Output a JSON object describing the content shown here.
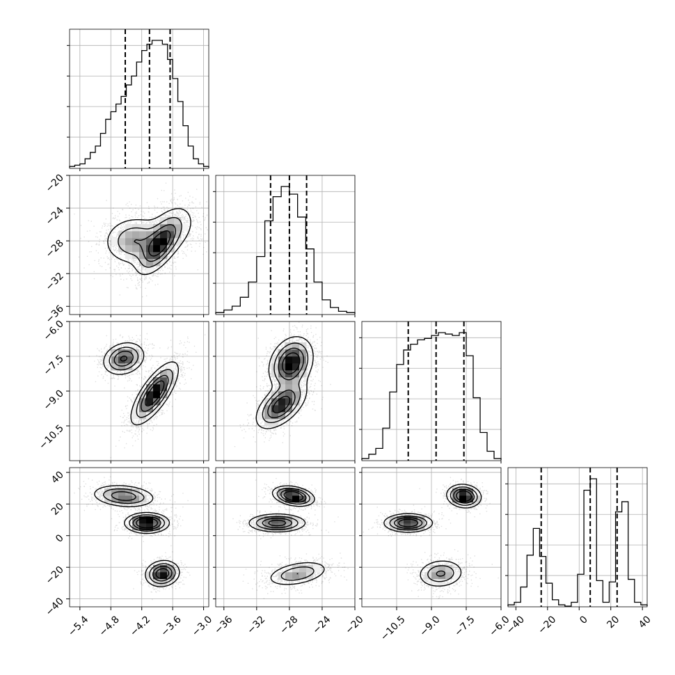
{
  "chart_data": {
    "type": "corner",
    "title": "",
    "parameters": [
      {
        "range": [
          -5.6,
          -2.9
        ],
        "ticks": [
          -5.4,
          -4.8,
          -4.2,
          -3.6,
          -3.0
        ],
        "tick_labels": [
          "−5.4",
          "−4.8",
          "−4.2",
          "−3.6",
          "−3.0"
        ],
        "quantiles": [
          -4.52,
          -4.05,
          -3.65
        ]
      },
      {
        "range": [
          -37,
          -20
        ],
        "ticks": [
          -36,
          -32,
          -28,
          -24,
          -20
        ],
        "tick_labels": [
          "−36",
          "−32",
          "−28",
          "−24",
          "−20"
        ],
        "quantiles": [
          -30.3,
          -28.0,
          -25.9
        ]
      },
      {
        "range": [
          -12,
          -6
        ],
        "ticks": [
          -10.5,
          -9.0,
          -7.5,
          -6.0
        ],
        "tick_labels": [
          "−10.5",
          "−9.0",
          "−7.5",
          "−6.0"
        ],
        "quantiles": [
          -10.0,
          -8.8,
          -7.6
        ]
      },
      {
        "range": [
          -45,
          43
        ],
        "ticks": [
          -40,
          -20,
          0,
          20,
          40
        ],
        "tick_labels": [
          "−40",
          "−20",
          "0",
          "20",
          "40"
        ],
        "quantiles": [
          -24,
          7,
          24
        ]
      }
    ],
    "histograms": [
      {
        "param": 0,
        "bin_edges": [
          -5.6,
          -5.5,
          -5.4,
          -5.3,
          -5.2,
          -5.1,
          -5.0,
          -4.9,
          -4.8,
          -4.7,
          -4.6,
          -4.5,
          -4.4,
          -4.3,
          -4.2,
          -4.1,
          -4.0,
          -3.9,
          -3.8,
          -3.7,
          -3.6,
          -3.5,
          -3.4,
          -3.3,
          -3.2,
          -3.1,
          -3.0,
          -2.9
        ],
        "counts": [
          1,
          2,
          3,
          7,
          12,
          17,
          27,
          38,
          44,
          50,
          56,
          65,
          72,
          83,
          92,
          97,
          100,
          100,
          97,
          85,
          70,
          52,
          33,
          17,
          7,
          3,
          1
        ]
      },
      {
        "param": 1,
        "bin_edges": [
          -37,
          -36,
          -35,
          -34,
          -33,
          -32,
          -31,
          -30,
          -29,
          -28,
          -27,
          -26,
          -25,
          -24,
          -23,
          -22,
          -21,
          -20
        ],
        "counts": [
          1,
          3,
          6,
          13,
          25,
          45,
          73,
          92,
          100,
          94,
          76,
          51,
          25,
          11,
          5,
          2,
          1
        ]
      },
      {
        "param": 2,
        "bin_edges": [
          -12,
          -11.7,
          -11.4,
          -11.1,
          -10.8,
          -10.5,
          -10.2,
          -9.9,
          -9.6,
          -9.3,
          -9.0,
          -8.7,
          -8.4,
          -8.1,
          -7.8,
          -7.5,
          -7.2,
          -6.9,
          -6.6,
          -6.3,
          -6.0
        ],
        "counts": [
          1,
          4,
          8,
          22,
          47,
          66,
          76,
          80,
          83,
          84,
          86,
          88,
          87,
          86,
          88,
          72,
          43,
          19,
          6,
          1
        ]
      },
      {
        "param": 3,
        "bin_edges": [
          -45,
          -41,
          -37,
          -33,
          -29,
          -25,
          -21,
          -17,
          -13,
          -9,
          -5,
          -1,
          3,
          7,
          11,
          15,
          19,
          23,
          27,
          31,
          35,
          39,
          43
        ],
        "counts": [
          1,
          3,
          15,
          40,
          61,
          39,
          18,
          5,
          1,
          0,
          3,
          25,
          91,
          100,
          20,
          3,
          19,
          74,
          82,
          21,
          3,
          1
        ]
      }
    ],
    "density_panels": [
      {
        "x": 0,
        "y": 1,
        "clusters": [
          {
            "center": [
              -4.35,
              -28.0
            ],
            "sd": [
              0.3,
              1.5
            ],
            "rho": 0.05,
            "weight": 1.0
          },
          {
            "center": [
              -3.85,
              -28.5
            ],
            "sd": [
              0.22,
              1.8
            ],
            "rho": 0.65,
            "weight": 1.1
          },
          {
            "center": [
              -3.6,
              -26.5
            ],
            "sd": [
              0.3,
              1.8
            ],
            "rho": 0.3,
            "weight": 0.45
          }
        ]
      },
      {
        "x": 0,
        "y": 2,
        "clusters": [
          {
            "center": [
              -4.55,
              -7.6
            ],
            "sd": [
              0.2,
              0.35
            ],
            "rho": 0.2,
            "weight": 0.35
          },
          {
            "center": [
              -3.95,
              -9.1
            ],
            "sd": [
              0.22,
              0.65
            ],
            "rho": 0.75,
            "weight": 0.65
          }
        ]
      },
      {
        "x": 1,
        "y": 2,
        "clusters": [
          {
            "center": [
              -27.8,
              -7.8
            ],
            "sd": [
              1.3,
              0.55
            ],
            "rho": 0.25,
            "weight": 0.55
          },
          {
            "center": [
              -29.0,
              -9.6
            ],
            "sd": [
              1.5,
              0.5
            ],
            "rho": 0.55,
            "weight": 0.45
          }
        ]
      },
      {
        "x": 0,
        "y": 3,
        "clusters": [
          {
            "center": [
              -4.55,
              25
            ],
            "sd": [
              0.3,
              3.5
            ],
            "rho": -0.2,
            "weight": 0.34
          },
          {
            "center": [
              -4.1,
              8
            ],
            "sd": [
              0.2,
              3
            ],
            "rho": 0.0,
            "weight": 0.36
          },
          {
            "center": [
              -3.8,
              -24
            ],
            "sd": [
              0.16,
              4
            ],
            "rho": 0.1,
            "weight": 0.3
          }
        ]
      },
      {
        "x": 1,
        "y": 3,
        "clusters": [
          {
            "center": [
              -27.5,
              25
            ],
            "sd": [
              1.2,
              3
            ],
            "rho": -0.3,
            "weight": 0.34
          },
          {
            "center": [
              -29.5,
              8
            ],
            "sd": [
              1.7,
              2.8
            ],
            "rho": 0.0,
            "weight": 0.36
          },
          {
            "center": [
              -27.0,
              -24
            ],
            "sd": [
              1.9,
              4
            ],
            "rho": 0.4,
            "weight": 0.3
          }
        ]
      },
      {
        "x": 2,
        "y": 3,
        "clusters": [
          {
            "center": [
              -7.6,
              25
            ],
            "sd": [
              0.35,
              3.5
            ],
            "rho": -0.1,
            "weight": 0.34
          },
          {
            "center": [
              -10.0,
              8
            ],
            "sd": [
              0.5,
              2.8
            ],
            "rho": 0.0,
            "weight": 0.36
          },
          {
            "center": [
              -8.6,
              -24
            ],
            "sd": [
              0.5,
              4.5
            ],
            "rho": 0.1,
            "weight": 0.3
          }
        ]
      }
    ],
    "grid": true
  }
}
